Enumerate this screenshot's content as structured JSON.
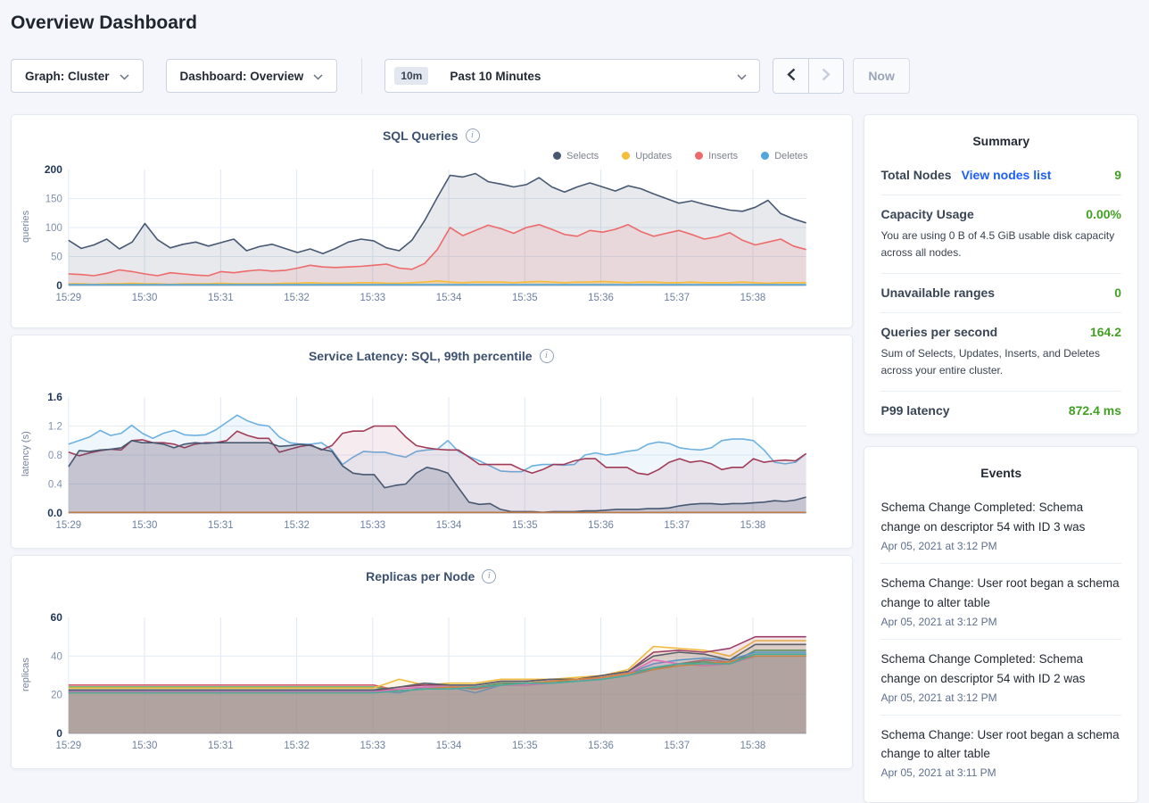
{
  "page": {
    "title": "Overview Dashboard"
  },
  "icons": {
    "info_glyph": "i",
    "info": "info-icon",
    "dropdown": "chevron-down-icon",
    "prev": "chevron-left-icon",
    "next": "chevron-right-icon"
  },
  "toolbar": {
    "graph_label": "Graph: Cluster",
    "dashboard_label": "Dashboard: Overview",
    "time_range_badge": "10m",
    "time_range_label": "Past 10 Minutes",
    "now_label": "Now"
  },
  "summary": {
    "title": "Summary",
    "value_color": "#42a024",
    "link_color": "#1d5eff",
    "rows": [
      {
        "label": "Total Nodes",
        "link": "View nodes list",
        "value": "9"
      },
      {
        "label": "Capacity Usage",
        "value": "0.00%",
        "desc": "You are using 0 B of 4.5 GiB usable disk capacity across all nodes."
      },
      {
        "label": "Unavailable ranges",
        "value": "0"
      },
      {
        "label": "Queries per second",
        "value": "164.2",
        "desc": "Sum of Selects, Updates, Inserts, and Deletes across your entire cluster."
      },
      {
        "label": "P99 latency",
        "value": "872.4 ms"
      }
    ]
  },
  "events": {
    "title": "Events",
    "items": [
      {
        "text": "Schema Change Completed: Schema change on descriptor 54 with ID 3 was",
        "time": "Apr 05, 2021 at 3:12 PM"
      },
      {
        "text": "Schema Change: User root began a schema change to alter table",
        "time": "Apr 05, 2021 at 3:12 PM"
      },
      {
        "text": "Schema Change Completed: Schema change on descriptor 54 with ID 2 was",
        "time": "Apr 05, 2021 at 3:12 PM"
      },
      {
        "text": "Schema Change: User root began a schema change to alter table",
        "time": "Apr 05, 2021 at 3:11 PM"
      }
    ]
  },
  "chart_data": [
    {
      "type": "area",
      "title": "SQL Queries",
      "ylabel": "queries",
      "ylim": [
        0,
        200
      ],
      "yticks": [
        0,
        50,
        100,
        150,
        200
      ],
      "ytick_labels": [
        "0",
        "50",
        "100",
        "150",
        "200"
      ],
      "xlim_minutes": [
        0,
        9.7
      ],
      "x_tick_minutes": [
        0,
        1,
        2,
        3,
        4,
        5,
        6,
        7,
        8,
        9
      ],
      "x_ticks": [
        "15:29",
        "15:30",
        "15:31",
        "15:32",
        "15:33",
        "15:34",
        "15:35",
        "15:36",
        "15:37",
        "15:38"
      ],
      "grid": true,
      "legend_position": "top-right",
      "legend": [
        {
          "label": "Selects",
          "color": "#475872"
        },
        {
          "label": "Updates",
          "color": "#f6bd3a"
        },
        {
          "label": "Inserts",
          "color": "#ee6a6a"
        },
        {
          "label": "Deletes",
          "color": "#51a6db"
        }
      ],
      "series": [
        {
          "name": "Selects",
          "color": "#475872",
          "fill_opacity": 0.13,
          "values": [
            78,
            64,
            70,
            80,
            63,
            75,
            107,
            79,
            65,
            71,
            75,
            68,
            74,
            80,
            60,
            67,
            71,
            64,
            57,
            63,
            55,
            64,
            75,
            80,
            77,
            65,
            60,
            78,
            112,
            152,
            190,
            187,
            193,
            179,
            175,
            170,
            174,
            186,
            170,
            161,
            170,
            177,
            170,
            163,
            172,
            167,
            158,
            150,
            142,
            146,
            140,
            135,
            130,
            128,
            135,
            147,
            124,
            115,
            108
          ]
        },
        {
          "name": "Inserts",
          "color": "#ee6a6a",
          "fill_opacity": 0.13,
          "values": [
            20,
            19,
            17,
            21,
            27,
            24,
            20,
            17,
            22,
            20,
            18,
            17,
            24,
            22,
            25,
            27,
            25,
            26,
            30,
            35,
            32,
            31,
            32,
            33,
            35,
            37,
            30,
            28,
            38,
            62,
            100,
            86,
            95,
            104,
            98,
            90,
            100,
            105,
            97,
            88,
            85,
            95,
            92,
            97,
            105,
            93,
            85,
            90,
            95,
            88,
            80,
            84,
            91,
            78,
            70,
            75,
            80,
            68,
            62
          ]
        },
        {
          "name": "Updates",
          "color": "#f6bd3a",
          "fill_opacity": 0.3,
          "values": [
            3,
            3,
            2,
            3,
            3,
            4,
            3,
            3,
            2,
            3,
            3,
            3,
            4,
            3,
            3,
            3,
            3,
            4,
            4,
            5,
            4,
            4,
            4,
            5,
            5,
            4,
            4,
            5,
            6,
            8,
            6,
            5,
            6,
            6,
            6,
            5,
            6,
            7,
            6,
            5,
            6,
            6,
            7,
            6,
            5,
            6,
            6,
            5,
            5,
            6,
            5,
            5,
            5,
            6,
            5,
            4,
            5,
            5,
            5
          ]
        },
        {
          "name": "Deletes",
          "color": "#51a6db",
          "fill_opacity": 0.4,
          "values": [
            1.5,
            1.5,
            1.5,
            1.5,
            1.5,
            1.5,
            1.5,
            1.5
          ]
        }
      ]
    },
    {
      "type": "area",
      "title": "Service Latency: SQL, 99th percentile",
      "ylabel": "latency (s)",
      "ylim": [
        0,
        1.6
      ],
      "yticks": [
        0,
        0.4,
        0.8,
        1.2,
        1.6
      ],
      "ytick_labels": [
        "0.0",
        "0.4",
        "0.8",
        "1.2",
        "1.6"
      ],
      "xlim_minutes": [
        0,
        9.7
      ],
      "x_tick_minutes": [
        0,
        1,
        2,
        3,
        4,
        5,
        6,
        7,
        8,
        9
      ],
      "x_ticks": [
        "15:29",
        "15:30",
        "15:31",
        "15:32",
        "15:33",
        "15:34",
        "15:35",
        "15:36",
        "15:37",
        "15:38"
      ],
      "grid": true,
      "legend": [],
      "series": [
        {
          "name": "series 1",
          "color": "#6cb1e0",
          "fill_opacity": 0.1,
          "values": [
            0.95,
            1.0,
            1.05,
            1.14,
            1.07,
            1.1,
            1.21,
            1.1,
            1.03,
            1.1,
            1.14,
            1.08,
            1.07,
            1.08,
            1.15,
            1.25,
            1.35,
            1.27,
            1.22,
            1.2,
            1.05,
            0.97,
            0.95,
            0.95,
            0.97,
            0.87,
            0.67,
            0.77,
            0.85,
            0.84,
            0.84,
            0.8,
            0.77,
            0.85,
            0.87,
            0.88,
            1.0,
            0.85,
            0.78,
            0.72,
            0.65,
            0.58,
            0.57,
            0.57,
            0.65,
            0.67,
            0.67,
            0.66,
            0.67,
            0.8,
            0.83,
            0.8,
            0.82,
            0.85,
            0.87,
            0.95,
            0.98,
            0.96,
            0.9,
            0.88,
            0.87,
            0.9,
            1.0,
            1.02,
            1.02,
            1.0,
            0.87,
            0.7,
            0.68,
            0.7,
            0.82
          ]
        },
        {
          "name": "series 2",
          "color": "#a23b57",
          "fill_opacity": 0.1,
          "values": [
            0.84,
            0.79,
            0.83,
            0.86,
            0.88,
            0.87,
            1.0,
            1.01,
            0.97,
            0.97,
            0.95,
            0.9,
            0.95,
            0.97,
            0.97,
            1.0,
            1.13,
            1.07,
            1.03,
            1.03,
            0.84,
            0.88,
            0.92,
            0.94,
            0.87,
            0.93,
            1.1,
            1.13,
            1.13,
            1.2,
            1.2,
            1.2,
            1.05,
            0.93,
            0.9,
            0.88,
            0.87,
            0.87,
            0.77,
            0.67,
            0.67,
            0.67,
            0.67,
            0.6,
            0.55,
            0.6,
            0.67,
            0.67,
            0.72,
            0.75,
            0.75,
            0.63,
            0.63,
            0.63,
            0.55,
            0.53,
            0.6,
            0.7,
            0.75,
            0.7,
            0.72,
            0.68,
            0.6,
            0.63,
            0.63,
            0.75,
            0.7,
            0.72,
            0.73,
            0.72,
            0.82
          ]
        },
        {
          "name": "series 3",
          "color": "#475872",
          "fill_opacity": 0.22,
          "values": [
            0.64,
            0.86,
            0.85,
            0.87,
            0.88,
            0.9,
            1.0,
            0.97,
            0.97,
            0.95,
            0.9,
            0.95,
            0.97,
            0.96,
            0.97,
            0.97,
            0.97,
            0.97,
            0.97,
            0.97,
            0.92,
            0.93,
            0.95,
            0.93,
            0.88,
            0.85,
            0.65,
            0.55,
            0.53,
            0.53,
            0.35,
            0.38,
            0.4,
            0.55,
            0.63,
            0.6,
            0.55,
            0.35,
            0.15,
            0.12,
            0.13,
            0.05,
            0.02,
            0.02,
            0.02,
            0.01,
            0.02,
            0.02,
            0.02,
            0.03,
            0.03,
            0.04,
            0.05,
            0.05,
            0.05,
            0.06,
            0.06,
            0.07,
            0.1,
            0.12,
            0.13,
            0.13,
            0.12,
            0.13,
            0.13,
            0.14,
            0.15,
            0.17,
            0.16,
            0.18,
            0.22
          ]
        },
        {
          "name": "series 4",
          "color": "#c07a45",
          "fill_opacity": 0,
          "values": [
            0.008,
            0.008,
            0.008,
            0.008,
            0.008,
            0.008
          ]
        }
      ]
    },
    {
      "type": "area",
      "title": "Replicas per Node",
      "ylabel": "replicas",
      "ylim": [
        0,
        60
      ],
      "yticks": [
        0,
        20,
        40,
        60
      ],
      "ytick_labels": [
        "0",
        "20",
        "40",
        "60"
      ],
      "xlim_minutes": [
        0,
        9.7
      ],
      "x_tick_minutes": [
        0,
        1,
        2,
        3,
        4,
        5,
        6,
        7,
        8,
        9
      ],
      "x_ticks": [
        "15:29",
        "15:30",
        "15:31",
        "15:32",
        "15:33",
        "15:34",
        "15:35",
        "15:36",
        "15:37",
        "15:38"
      ],
      "grid": true,
      "legend": [],
      "series": [
        {
          "name": "node 1",
          "color": "#cf5b63",
          "fill_opacity": 0.13,
          "values": [
            25,
            25,
            25,
            25,
            25,
            25,
            25,
            25,
            25,
            25,
            25,
            25,
            25,
            22,
            23,
            24,
            23,
            25,
            26,
            26,
            27,
            28,
            30,
            33,
            36,
            38,
            37,
            41,
            41,
            41
          ]
        },
        {
          "name": "node 2",
          "color": "#4aa564",
          "fill_opacity": 0.13,
          "values": [
            24,
            24,
            24,
            24,
            24,
            24,
            24,
            24,
            24,
            24,
            24,
            24,
            24,
            22,
            23,
            23,
            24,
            26,
            26,
            27,
            27,
            29,
            31,
            34,
            36,
            37,
            36,
            43,
            43,
            43
          ]
        },
        {
          "name": "node 3",
          "color": "#f0bc40",
          "fill_opacity": 0.13,
          "values": [
            23.5,
            23.5,
            23.5,
            23.5,
            23.5,
            23.5,
            23.5,
            23.5,
            23.5,
            23.5,
            23.5,
            23.5,
            23.5,
            28,
            25,
            26,
            26,
            28,
            28,
            28,
            29,
            30,
            33,
            45,
            44,
            43,
            40,
            48,
            48,
            48
          ]
        },
        {
          "name": "node 4",
          "color": "#9e3c68",
          "fill_opacity": 0.13,
          "values": [
            22,
            22,
            22,
            22,
            22,
            22,
            22,
            22,
            22,
            22,
            22,
            22,
            22,
            24,
            25,
            25,
            25,
            27,
            27,
            28,
            28,
            30,
            32,
            42,
            43,
            42,
            44,
            50,
            50,
            50
          ]
        },
        {
          "name": "node 5",
          "color": "#5b9bd3",
          "fill_opacity": 0.13,
          "values": [
            22,
            22,
            22,
            22,
            22,
            22,
            22,
            22,
            22,
            22,
            22,
            22,
            22,
            21,
            24,
            24,
            21,
            25,
            25,
            26,
            27,
            29,
            31,
            36,
            38,
            39,
            38,
            42,
            42,
            42
          ]
        },
        {
          "name": "node 6",
          "color": "#5a6069",
          "fill_opacity": 0.13,
          "values": [
            22.5,
            22.5,
            22.5,
            22.5,
            22.5,
            22.5,
            22.5,
            22.5,
            22.5,
            22.5,
            22.5,
            22.5,
            22.5,
            24,
            26,
            25,
            25,
            27,
            27,
            28,
            28,
            30,
            32,
            40,
            42,
            41,
            38,
            46,
            46,
            46
          ]
        },
        {
          "name": "node 7",
          "color": "#df6cb4",
          "fill_opacity": 0.13,
          "values": [
            21.5,
            21.5,
            21.5,
            21.5,
            21.5,
            21.5,
            21.5,
            21.5,
            21.5,
            21.5,
            21.5,
            21.5,
            21.5,
            23,
            24,
            24,
            24,
            25,
            25,
            26,
            27,
            29,
            31,
            38,
            36,
            35,
            36,
            40,
            40,
            40
          ]
        },
        {
          "name": "node 8",
          "color": "#d3823e",
          "fill_opacity": 0.13,
          "values": [
            21,
            21,
            21,
            21,
            21,
            21,
            21,
            21,
            21,
            21,
            21,
            21,
            21,
            22,
            23,
            24,
            24,
            25,
            26,
            27,
            28,
            29,
            31,
            33,
            35,
            36,
            37,
            40,
            40,
            40
          ]
        },
        {
          "name": "node 9",
          "color": "#47ad9d",
          "fill_opacity": 0.13,
          "values": [
            21,
            21,
            21,
            21,
            21,
            21,
            21,
            21,
            21,
            21,
            21,
            21,
            21,
            22,
            23,
            23,
            24,
            25,
            26,
            26,
            27,
            28,
            30,
            34,
            36,
            36,
            36,
            41,
            41,
            41
          ]
        }
      ]
    }
  ]
}
